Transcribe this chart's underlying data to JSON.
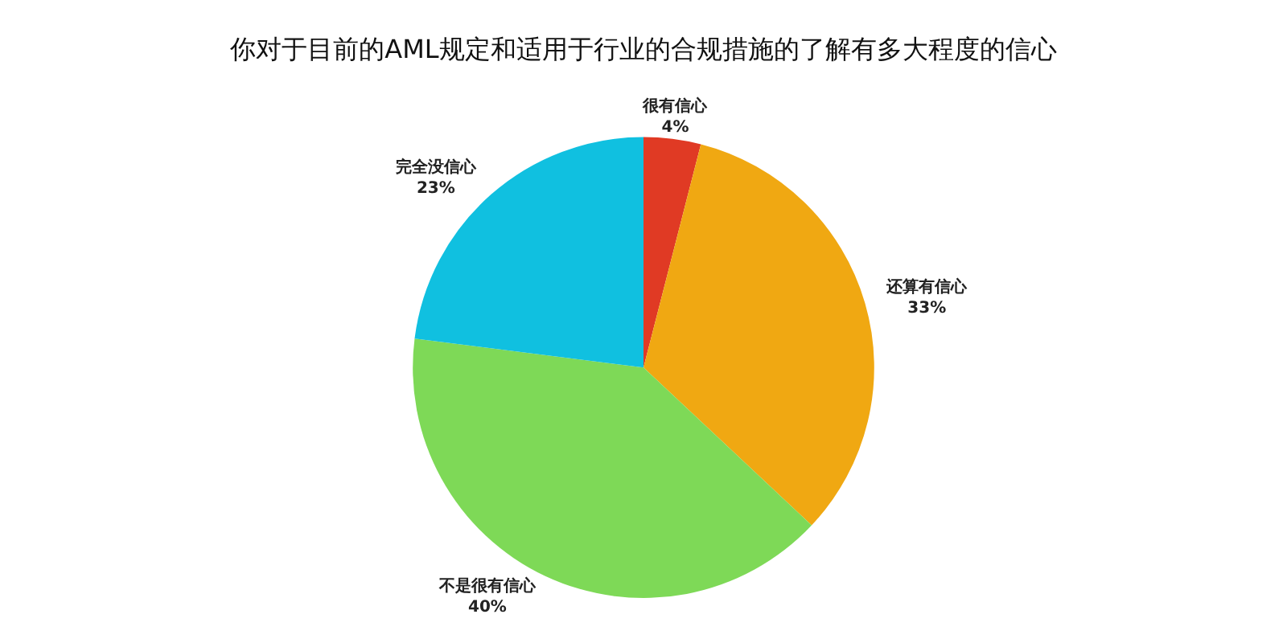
{
  "chart_data": {
    "type": "pie",
    "title": "你对于目前的AML规定和适用于行业的合规措施的了解有多大程度的信心",
    "categories": [
      "很有信心",
      "还算有信心",
      "不是很有信心",
      "完全没信心"
    ],
    "values": [
      4,
      33,
      40,
      23
    ],
    "value_labels": [
      "4%",
      "33%",
      "40%",
      "23%"
    ],
    "colors": [
      "#e03a24",
      "#f0a812",
      "#7ed957",
      "#10c0e0"
    ],
    "legend": false
  }
}
